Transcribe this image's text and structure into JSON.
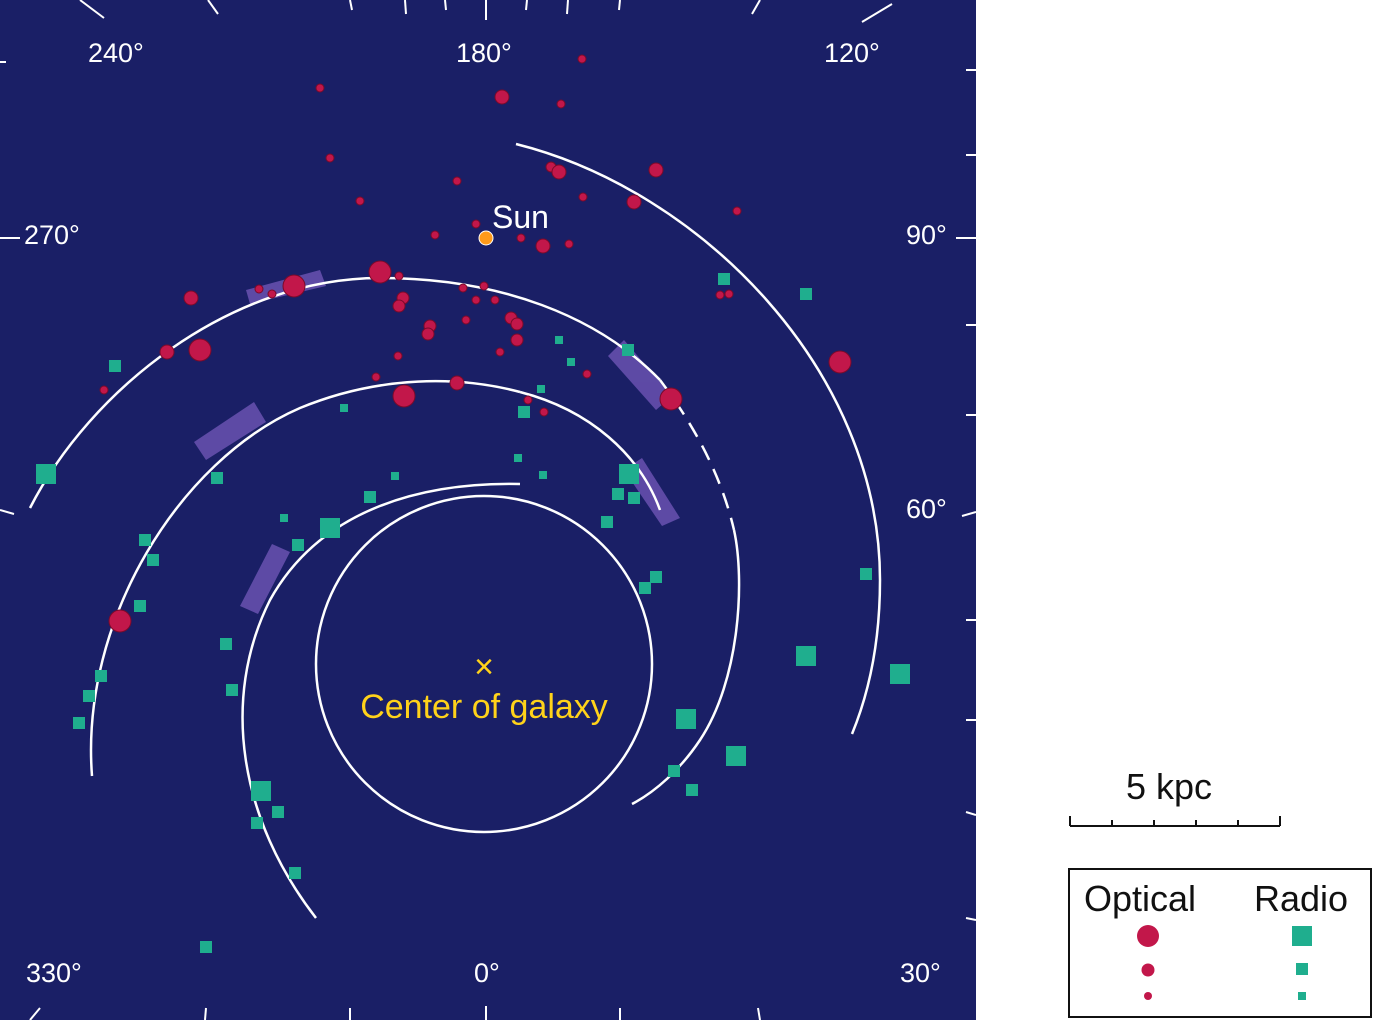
{
  "diagram": {
    "labels": {
      "sun": "Sun",
      "center": "Center of galaxy",
      "center_marker": "×"
    },
    "longitudes": [
      "240°",
      "180°",
      "120°",
      "270°",
      "90°",
      "60°",
      "330°",
      "0°",
      "30°"
    ],
    "scale_bar": "5 kpc",
    "legend": {
      "optical": "Optical",
      "radio": "Radio"
    },
    "colors": {
      "background": "#1a1f66",
      "optical": "#c2174a",
      "radio": "#1fae8e",
      "arms": "#ffffff",
      "sun": "#ff9a1a",
      "center": "#ffd21a",
      "arm_patch": "#7a5cc0"
    }
  }
}
